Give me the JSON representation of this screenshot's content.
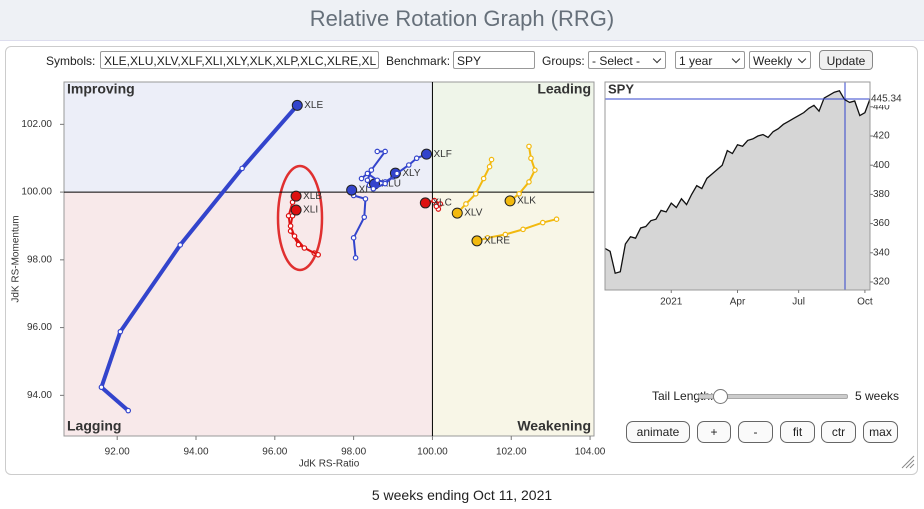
{
  "header": {
    "title": "Relative Rotation Graph (RRG)"
  },
  "controls": {
    "symbols_label": "Symbols:",
    "symbols": "XLE,XLU,XLV,XLF,XLI,XLY,XLK,XLP,XLC,XLRE,XL",
    "benchmark_label": "Benchmark:",
    "benchmark": "SPY",
    "groups_label": "Groups:",
    "groups": "- Select -",
    "period": "1 year",
    "frequency": "Weekly",
    "update": "Update"
  },
  "rrg": {
    "quadrants": {
      "improving": "Improving",
      "leading": "Leading",
      "weakening": "Weakening",
      "lagging": "Lagging"
    },
    "x_label": "JdK RS-Ratio",
    "y_label": "JdK RS-Momentum",
    "xlim": [
      90.65,
      104.1
    ],
    "ylim": [
      92.8,
      103.25
    ],
    "divider": 100,
    "xticks": [
      {
        "value": 92,
        "label": "92.00"
      },
      {
        "value": 94,
        "label": "94.00"
      },
      {
        "value": 96,
        "label": "96.00"
      },
      {
        "value": 98,
        "label": "98.00"
      },
      {
        "value": 100,
        "label": "100.00"
      },
      {
        "value": 102,
        "label": "102.00"
      },
      {
        "value": 104,
        "label": "104.00"
      }
    ],
    "yticks": [
      {
        "value": 94,
        "label": "94.00"
      },
      {
        "value": 96,
        "label": "96.00"
      },
      {
        "value": 98,
        "label": "98.00"
      },
      {
        "value": 100,
        "label": "100.00"
      },
      {
        "value": 102,
        "label": "102.00"
      }
    ],
    "series": [
      {
        "name": "XLE",
        "color": "#3344cc",
        "x": [
          92.28,
          91.6,
          92.08,
          93.6,
          95.17,
          96.57
        ],
        "y": [
          93.55,
          94.24,
          95.88,
          98.44,
          100.7,
          102.56
        ]
      },
      {
        "name": "XLB",
        "color": "#dd1111",
        "x": [
          97.0,
          96.6,
          96.4,
          96.35,
          96.45,
          96.54
        ],
        "y": [
          98.2,
          98.45,
          98.85,
          99.3,
          99.7,
          99.88
        ]
      },
      {
        "name": "XLI",
        "color": "#dd1111",
        "x": [
          97.1,
          96.75,
          96.5,
          96.4,
          96.45,
          96.54
        ],
        "y": [
          98.15,
          98.35,
          98.7,
          99.0,
          99.3,
          99.47
        ]
      },
      {
        "name": "XLP",
        "color": "#3344cc",
        "x": [
          98.05,
          98.0,
          98.27,
          98.3,
          98.0,
          97.95
        ],
        "y": [
          98.06,
          98.65,
          99.26,
          99.8,
          99.9,
          100.06
        ]
      },
      {
        "name": "XLU",
        "color": "#3344cc",
        "x": [
          98.6,
          98.8,
          98.45,
          98.35,
          98.4,
          98.53
        ],
        "y": [
          101.2,
          101.2,
          100.65,
          100.35,
          100.2,
          100.24
        ]
      },
      {
        "name": "XLY",
        "color": "#3344cc",
        "x": [
          98.2,
          98.35,
          98.6,
          98.8,
          99.0,
          99.06
        ],
        "y": [
          100.4,
          100.55,
          100.35,
          100.3,
          100.45,
          100.56
        ]
      },
      {
        "name": "XLF",
        "color": "#3344cc",
        "x": [
          98.5,
          98.8,
          99.1,
          99.4,
          99.6,
          99.85
        ],
        "y": [
          100.1,
          100.25,
          100.55,
          100.8,
          101.0,
          101.12
        ]
      },
      {
        "name": "XLC",
        "color": "#dd1111",
        "x": [
          100.15,
          100.1,
          100.2,
          100.05,
          99.9,
          99.82
        ],
        "y": [
          99.5,
          99.58,
          99.65,
          99.75,
          99.7,
          99.68
        ]
      },
      {
        "name": "XLV",
        "color": "#f2b90f",
        "x": [
          101.5,
          101.45,
          101.3,
          101.1,
          100.85,
          100.63
        ],
        "y": [
          100.96,
          100.75,
          100.4,
          99.95,
          99.65,
          99.38
        ]
      },
      {
        "name": "XLK",
        "color": "#f2b90f",
        "x": [
          102.45,
          102.5,
          102.6,
          102.45,
          102.2,
          101.97
        ],
        "y": [
          101.35,
          101.0,
          100.65,
          100.3,
          99.95,
          99.74
        ]
      },
      {
        "name": "XLRE",
        "color": "#f2b90f",
        "x": [
          103.15,
          102.8,
          102.3,
          101.85,
          101.4,
          101.13
        ],
        "y": [
          99.2,
          99.1,
          98.9,
          98.75,
          98.65,
          98.56
        ]
      }
    ]
  },
  "spy": {
    "title": "SPY",
    "categories": [
      null,
      null,
      null,
      null,
      null,
      null,
      null,
      null,
      null,
      null,
      null,
      null,
      null,
      "2021",
      null,
      null,
      null,
      null,
      null,
      null,
      null,
      null,
      null,
      null,
      null,
      null,
      "Apr",
      null,
      null,
      null,
      null,
      null,
      null,
      null,
      null,
      null,
      null,
      null,
      "Jul",
      null,
      null,
      null,
      null,
      null,
      null,
      null,
      null,
      null,
      null,
      null,
      null,
      "Oct",
      null
    ],
    "values": [
      343,
      341,
      326,
      327,
      346,
      351,
      350,
      357,
      358,
      362,
      363,
      369,
      368,
      374,
      371,
      377,
      373,
      380,
      386,
      384,
      391,
      394,
      397,
      400,
      410,
      408,
      414,
      413,
      417,
      418,
      420,
      421,
      419,
      423,
      425,
      428,
      430,
      432,
      434,
      436,
      439,
      441,
      437,
      446,
      448,
      450,
      451,
      445,
      443,
      444,
      434,
      436,
      445.34
    ],
    "ylim": [
      314.5,
      457
    ],
    "yticks": [
      320,
      340,
      360,
      380,
      400,
      420,
      440
    ],
    "color": "#3344cc"
  },
  "tail": {
    "label": "Tail Length:",
    "value": "5 weeks"
  },
  "buttons": [
    "animate",
    "+",
    "-",
    "fit",
    "ctr",
    "max"
  ],
  "footer": "5 weeks ending Oct 11, 2021"
}
